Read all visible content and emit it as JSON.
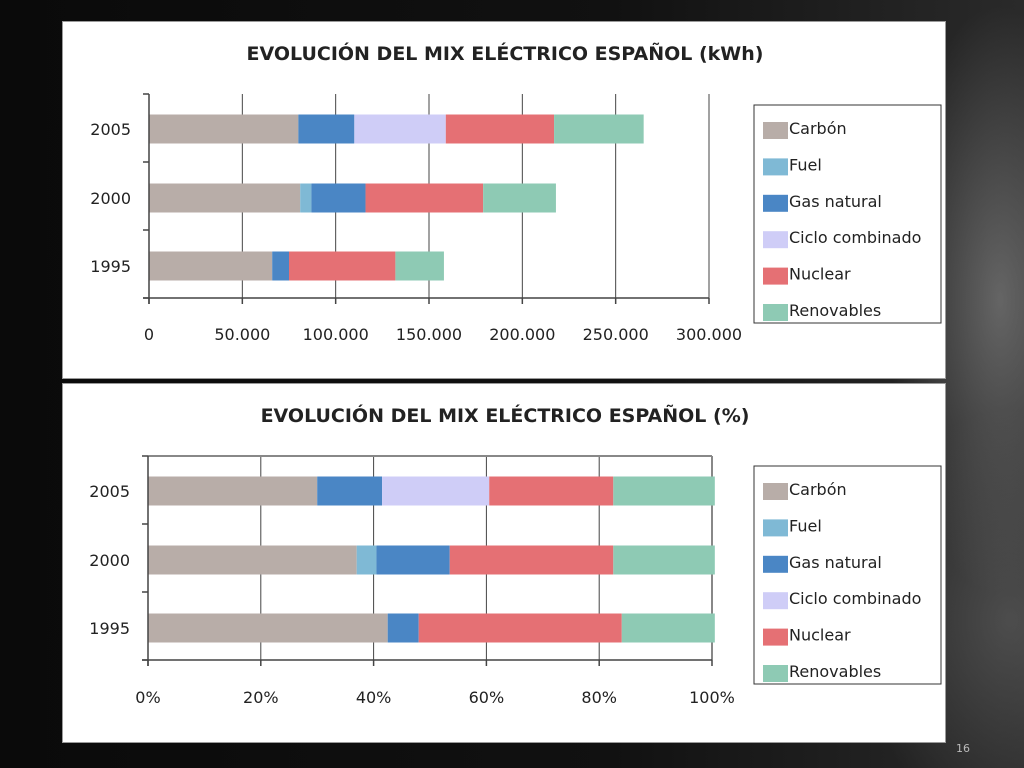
{
  "slide": {
    "page_number": "16"
  },
  "chart_data": [
    {
      "type": "bar",
      "orientation": "horizontal",
      "stacked": true,
      "title": "EVOLUCIÓN DEL MIX ELÉCTRICO ESPAÑOL (kWh)",
      "categories": [
        "2005",
        "2000",
        "1995"
      ],
      "xlim": [
        0,
        300000
      ],
      "ticks": [
        0,
        50000,
        100000,
        150000,
        200000,
        250000,
        300000
      ],
      "tick_labels": [
        "0",
        "50.000",
        "100.000",
        "150.000",
        "200.000",
        "250.000",
        "300.000"
      ],
      "grid": true,
      "legend_position": "right",
      "series": [
        {
          "name": "Carbón",
          "color": "#b8ada8",
          "values": [
            80000,
            81000,
            66000
          ]
        },
        {
          "name": "Fuel",
          "color": "#7fb9d5",
          "values": [
            0,
            6000,
            0
          ]
        },
        {
          "name": "Gas natural",
          "color": "#4a86c5",
          "values": [
            30000,
            29000,
            9000
          ]
        },
        {
          "name": "Ciclo combinado",
          "color": "#cfcdf7",
          "values": [
            49000,
            0,
            0
          ]
        },
        {
          "name": "Nuclear",
          "color": "#e57074",
          "values": [
            58000,
            63000,
            57000
          ]
        },
        {
          "name": "Renovables",
          "color": "#8ecab4",
          "values": [
            48000,
            39000,
            26000
          ]
        }
      ]
    },
    {
      "type": "bar",
      "orientation": "horizontal",
      "stacked": true,
      "title": "EVOLUCIÓN DEL MIX ELÉCTRICO ESPAÑOL (%)",
      "categories": [
        "2005",
        "2000",
        "1995"
      ],
      "xlim": [
        0,
        100
      ],
      "ticks": [
        0,
        20,
        40,
        60,
        80,
        100
      ],
      "tick_labels": [
        "0%",
        "20%",
        "40%",
        "60%",
        "80%",
        "100%"
      ],
      "grid": true,
      "legend_position": "right",
      "series": [
        {
          "name": "Carbón",
          "color": "#b8ada8",
          "values": [
            30,
            37,
            42.5
          ]
        },
        {
          "name": "Fuel",
          "color": "#7fb9d5",
          "values": [
            0,
            3.5,
            0
          ]
        },
        {
          "name": "Gas natural",
          "color": "#4a86c5",
          "values": [
            11.5,
            13,
            5.5
          ]
        },
        {
          "name": "Ciclo combinado",
          "color": "#cfcdf7",
          "values": [
            19,
            0,
            0
          ]
        },
        {
          "name": "Nuclear",
          "color": "#e57074",
          "values": [
            22,
            29,
            36
          ]
        },
        {
          "name": "Renovables",
          "color": "#8ecab4",
          "values": [
            18,
            18,
            16.5
          ]
        }
      ]
    }
  ]
}
